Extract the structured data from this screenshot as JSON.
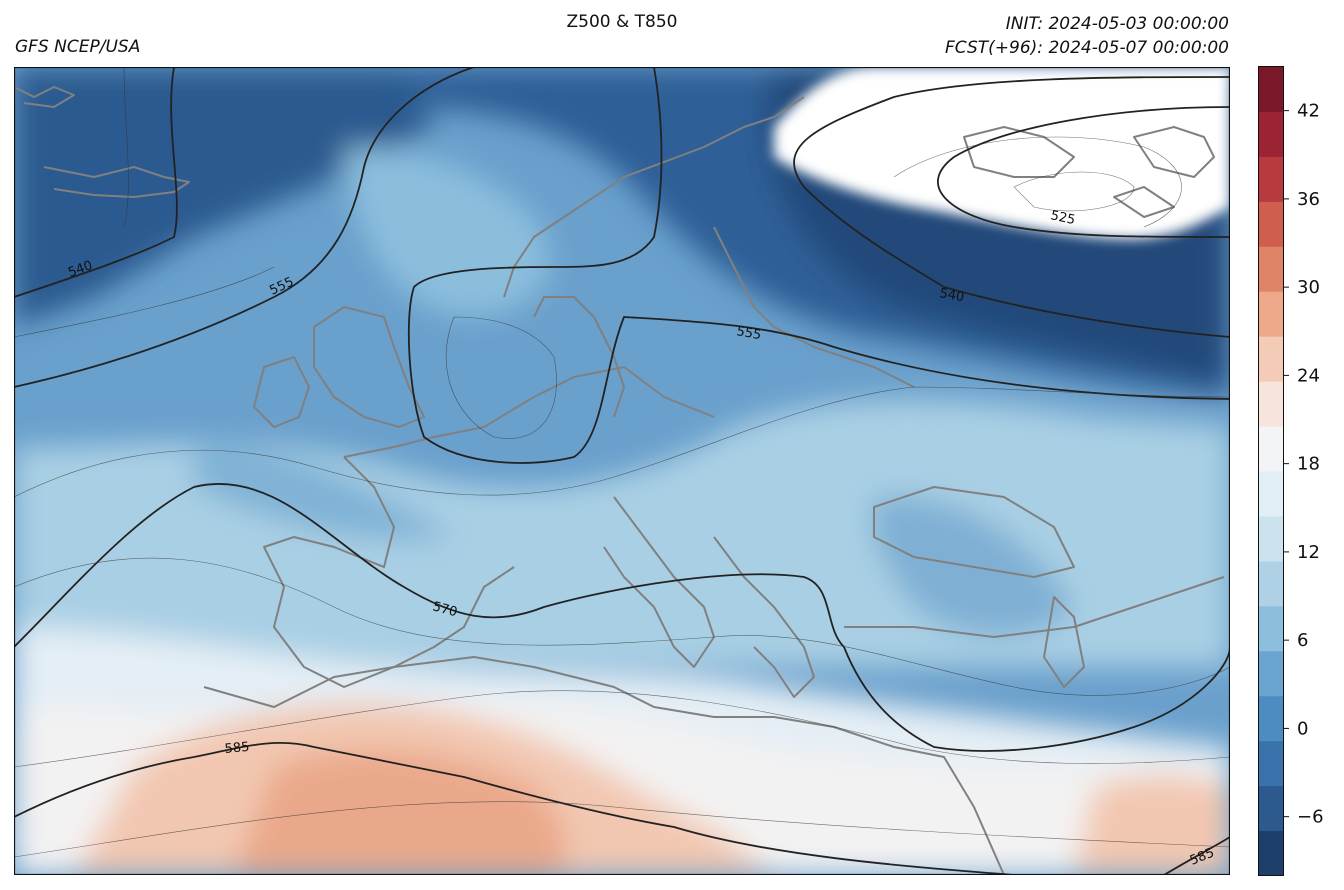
{
  "header": {
    "title": "Z500 & T850",
    "model": "GFS NCEP/USA",
    "init": "INIT: 2024-05-03 00:00:00",
    "forecast": "FCST(+96): 2024-05-07 00:00:00"
  },
  "contour_labels": {
    "z525": "525",
    "z540": "540",
    "z555": "555",
    "z570": "570",
    "z585": "585"
  },
  "colorbar": {
    "min": -10,
    "max": 45,
    "ticks": [
      "42",
      "36",
      "30",
      "24",
      "18",
      "12",
      "6",
      "0",
      "−6"
    ],
    "tick_values": [
      42,
      36,
      30,
      24,
      18,
      12,
      6,
      0,
      -6
    ],
    "colors_cold_to_warm": [
      "#1f3f6b",
      "#2c5a8f",
      "#3a72ab",
      "#4d8cc0",
      "#6aa5d0",
      "#8cbedd",
      "#aed1e6",
      "#cbe2ef",
      "#e2eef5",
      "#f2f4f5",
      "#f7e4dc",
      "#f4cbb6",
      "#eea98b",
      "#e08468",
      "#cf5e4e",
      "#b83a3e",
      "#9b2333",
      "#7a1728"
    ],
    "colors": {
      "coldest": "#1f3f6b",
      "neutral": "#f2f4f5",
      "warmest": "#7a1728"
    }
  },
  "map": {
    "coastline_color": "#808080",
    "contour_color": "#222222"
  }
}
